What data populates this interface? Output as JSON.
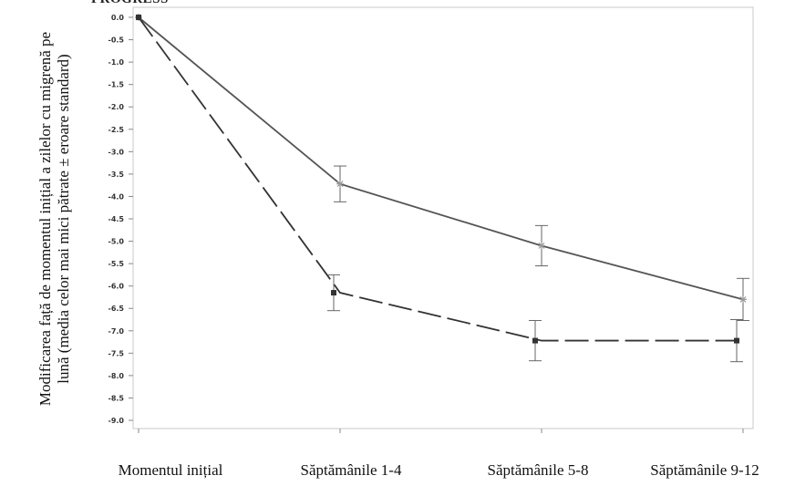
{
  "chart_data": {
    "type": "line",
    "title": "PROGRESS",
    "ylabel": "Modificarea față de momentul inițial a zilelor cu migrenă pe lună (media celor mai mici pătrate ± eroare standard)",
    "xlabel": "",
    "categories": [
      "Momentul inițial",
      "Săptămânile 1-4",
      "Săptămânile 5-8",
      "Săptămânile 9-12"
    ],
    "ylim": [
      -9.0,
      0.0
    ],
    "yticks": [
      "0.0",
      "-0.5",
      "-1.0",
      "-1.5",
      "-2.0",
      "-2.5",
      "-3.0",
      "-3.5",
      "-4.0",
      "-4.5",
      "-5.0",
      "-5.5",
      "-6.0",
      "-6.5",
      "-7.0",
      "-7.5",
      "-8.0",
      "-8.5",
      "-9.0"
    ],
    "grid": false,
    "series": [
      {
        "style": "solid",
        "marker": "star",
        "color": "#555555",
        "values": [
          0.0,
          -3.72,
          -5.1,
          -6.3
        ],
        "err": [
          0,
          0.4,
          0.45,
          0.47
        ]
      },
      {
        "style": "dashed",
        "marker": "square",
        "color": "#333333",
        "values": [
          0.0,
          -6.15,
          -7.22,
          -7.22
        ],
        "err": [
          0,
          0.4,
          0.45,
          0.47
        ]
      }
    ]
  }
}
